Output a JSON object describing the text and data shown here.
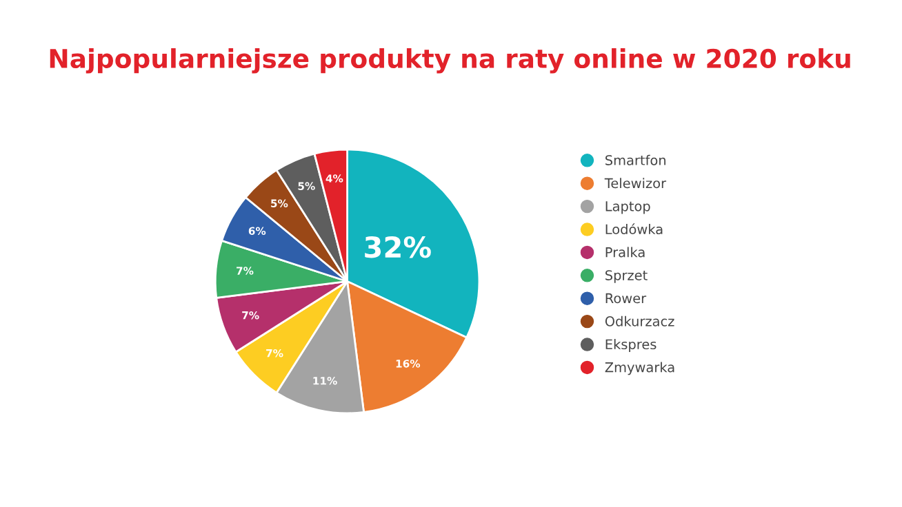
{
  "chart_data": {
    "type": "pie",
    "title": "Najpopularniejsze produkty na raty online w 2020 roku",
    "categories": [
      "Smartfon",
      "Telewizor",
      "Laptop",
      "Lodówka",
      "Pralka",
      "Sprzet",
      "Rower",
      "Odkurzacz",
      "Ekspres",
      "Zmywarka"
    ],
    "values": [
      32,
      16,
      11,
      7,
      7,
      7,
      6,
      5,
      5,
      4
    ],
    "value_labels": [
      "32%",
      "16%",
      "11%",
      "7%",
      "7%",
      "7%",
      "6%",
      "5%",
      "5%",
      "4%"
    ],
    "colors": [
      "#12b4be",
      "#ed7d31",
      "#a3a3a3",
      "#fdcd22",
      "#b5306b",
      "#3aae66",
      "#2f5faa",
      "#9a4817",
      "#5e5e5e",
      "#e2222a"
    ],
    "legend": "right"
  }
}
